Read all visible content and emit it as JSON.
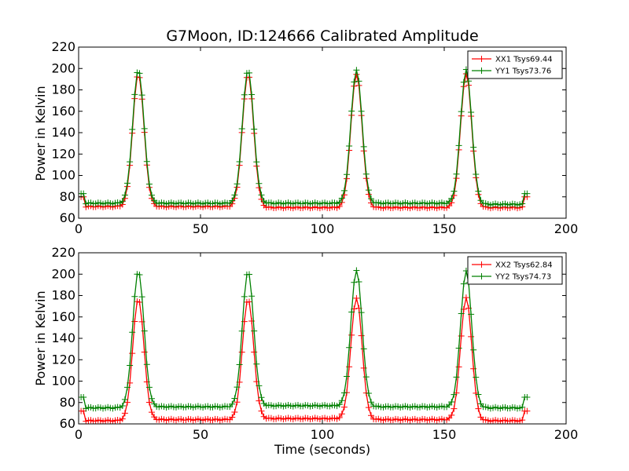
{
  "chart_data": [
    {
      "type": "line",
      "title": "G7Moon, ID:124666 Calibrated Amplitude",
      "xlabel": "",
      "ylabel": "Power in Kelvin",
      "xlim": [
        0,
        200
      ],
      "ylim": [
        60,
        220
      ],
      "xticks": [
        "0",
        "50",
        "100",
        "150",
        "200"
      ],
      "yticks": [
        "60",
        "80",
        "100",
        "120",
        "140",
        "160",
        "180",
        "200",
        "220"
      ],
      "legend_position": "top-right",
      "grid": false,
      "peaks_x": [
        24.5,
        69.5,
        114,
        159
      ],
      "series": [
        {
          "name": "XX1 Tsys69.44",
          "color": "#ff0000",
          "baseline": [
            71,
            71,
            70,
            70,
            70
          ],
          "peak_values": [
            195,
            195,
            195,
            195
          ],
          "start": [
            1,
            80
          ],
          "end": [
            184,
            80
          ]
        },
        {
          "name": "YY1 Tsys73.76",
          "color": "#008000",
          "baseline": [
            74,
            74,
            74,
            74,
            73
          ],
          "peak_values": [
            199,
            199,
            199,
            199
          ],
          "start": [
            1,
            83
          ],
          "end": [
            184,
            83
          ]
        }
      ]
    },
    {
      "type": "line",
      "title": "",
      "xlabel": "Time (seconds)",
      "ylabel": "Power in Kelvin",
      "xlim": [
        0,
        200
      ],
      "ylim": [
        60,
        220
      ],
      "xticks": [
        "0",
        "50",
        "100",
        "150",
        "200"
      ],
      "yticks": [
        "60",
        "80",
        "100",
        "120",
        "140",
        "160",
        "180",
        "200",
        "220"
      ],
      "legend_position": "top-right",
      "grid": false,
      "peaks_x": [
        24.5,
        69.5,
        114,
        159
      ],
      "series": [
        {
          "name": "XX2 Tsys62.84",
          "color": "#ff0000",
          "baseline": [
            63,
            64,
            65,
            64,
            63
          ],
          "peak_values": [
            177,
            177,
            178,
            178
          ],
          "start": [
            1,
            72
          ],
          "end": [
            184,
            72
          ]
        },
        {
          "name": "YY2 Tsys74.73",
          "color": "#008000",
          "baseline": [
            75,
            76,
            77,
            76,
            75
          ],
          "peak_values": [
            203,
            203,
            204,
            203
          ],
          "start": [
            1,
            85
          ],
          "end": [
            184,
            85
          ]
        }
      ]
    }
  ]
}
